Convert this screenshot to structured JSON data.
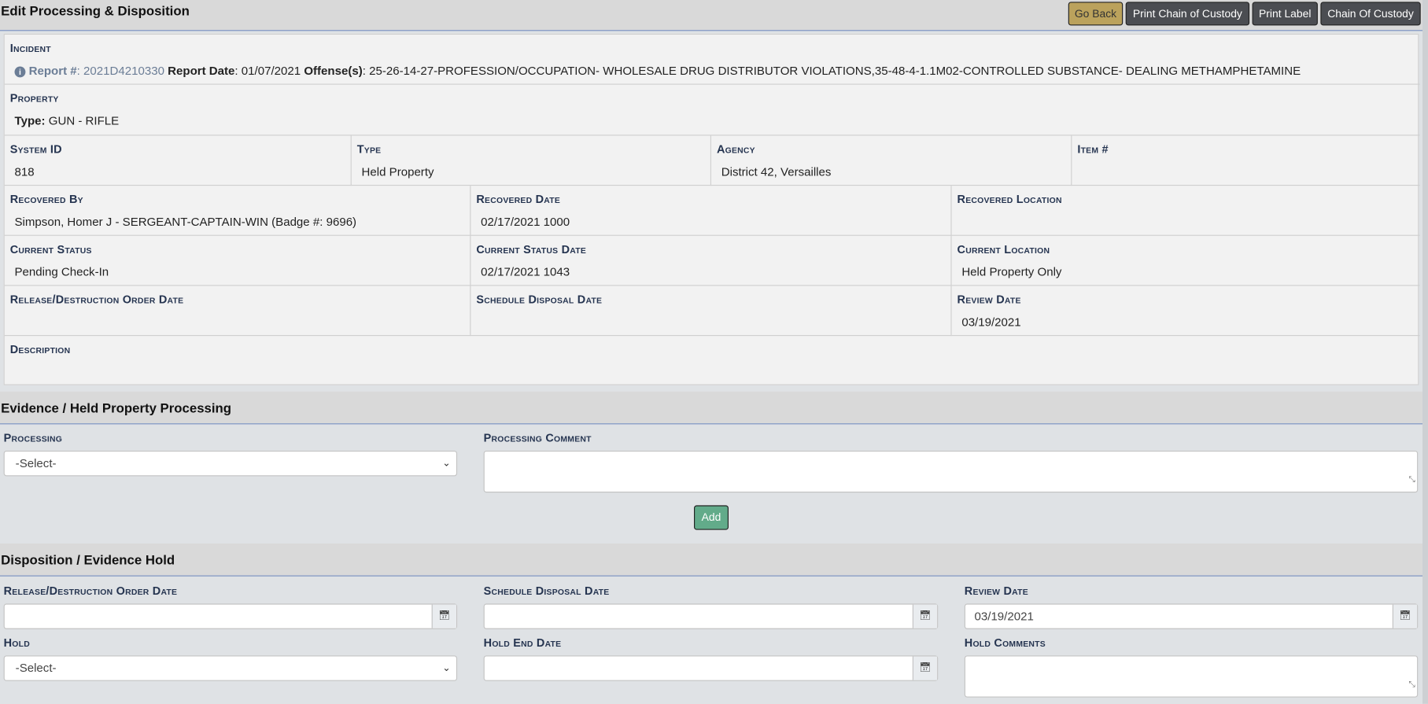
{
  "page_title": "Edit Processing & Disposition",
  "buttons": {
    "go_back": "Go Back",
    "print_chain": "Print Chain of Custody",
    "print_label": "Print Label",
    "chain": "Chain Of Custody"
  },
  "incident": {
    "label": "Incident",
    "report_label": "Report #",
    "report_no": "2021D4210330",
    "report_date_label": "Report Date",
    "report_date": "01/07/2021",
    "offense_label": "Offense(s)",
    "offenses": "25-26-14-27-PROFESSION/OCCUPATION- WHOLESALE DRUG DISTRIBUTOR VIOLATIONS,35-48-4-1.1M02-CONTROLLED SUBSTANCE- DEALING METHAMPHETAMINE"
  },
  "property": {
    "label": "Property",
    "type_label": "Type:",
    "type": "GUN - RIFLE"
  },
  "fields": {
    "system_id": {
      "label": "System ID",
      "value": "818"
    },
    "type": {
      "label": "Type",
      "value": "Held Property"
    },
    "agency": {
      "label": "Agency",
      "value": "District 42, Versailles"
    },
    "item": {
      "label": "Item #",
      "value": ""
    },
    "recovered_by": {
      "label": "Recovered By",
      "value": "Simpson, Homer J - SERGEANT-CAPTAIN-WIN (Badge #: 9696)"
    },
    "recovered_date": {
      "label": "Recovered Date",
      "value": "02/17/2021 1000"
    },
    "recovered_location": {
      "label": "Recovered Location",
      "value": ""
    },
    "current_status": {
      "label": "Current Status",
      "value": "Pending Check-In"
    },
    "current_status_date": {
      "label": "Current Status Date",
      "value": "02/17/2021 1043"
    },
    "current_location": {
      "label": "Current Location",
      "value": "Held Property Only"
    },
    "release_order_date": {
      "label": "Release/Destruction Order Date",
      "value": ""
    },
    "schedule_disposal_date": {
      "label": "Schedule Disposal Date",
      "value": ""
    },
    "review_date": {
      "label": "Review Date",
      "value": "03/19/2021"
    },
    "description": {
      "label": "Description",
      "value": ""
    }
  },
  "processing": {
    "title": "Evidence / Held Property Processing",
    "processing_label": "Processing",
    "processing_value": "-Select-",
    "comment_label": "Processing Comment",
    "comment_value": "",
    "add": "Add"
  },
  "disposition": {
    "title": "Disposition / Evidence Hold",
    "release_label": "Release/Destruction Order Date",
    "release_value": "",
    "schedule_label": "Schedule Disposal Date",
    "schedule_value": "",
    "review_label": "Review Date",
    "review_value": "03/19/2021",
    "hold_label": "Hold",
    "hold_value": "-Select-",
    "hold_end_label": "Hold End Date",
    "hold_end_value": "",
    "hold_comments_label": "Hold Comments",
    "hold_comments_value": ""
  },
  "colors": {
    "go_back": "#bba25c",
    "dark_button": "#4b4d52",
    "add_button": "#62ab8a",
    "label": "#253450",
    "accent_line": "#7b93c4"
  }
}
